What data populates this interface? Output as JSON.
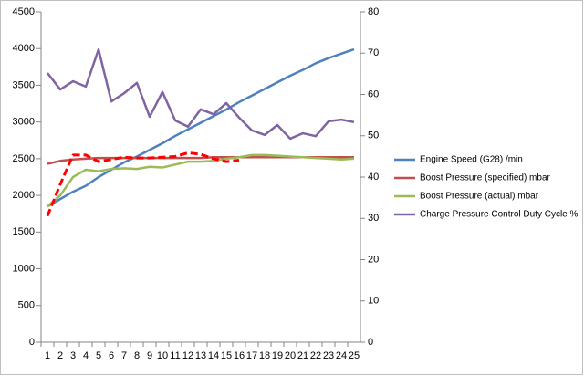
{
  "chart_data": {
    "type": "line",
    "categories": [
      1,
      2,
      3,
      4,
      5,
      6,
      7,
      8,
      9,
      10,
      11,
      12,
      13,
      14,
      15,
      16,
      17,
      18,
      19,
      20,
      21,
      22,
      23,
      24,
      25
    ],
    "ylim": [
      0,
      4500
    ],
    "yticks": [
      0,
      500,
      1000,
      1500,
      2000,
      2500,
      3000,
      3500,
      4000,
      4500
    ],
    "y2lim": [
      0,
      80
    ],
    "y2ticks": [
      0,
      10,
      20,
      30,
      40,
      50,
      60,
      70,
      80
    ],
    "legend": "right",
    "grid": false,
    "series": [
      {
        "name": "Engine Speed (G28)  /min",
        "color": "#4f81bd",
        "values": [
          1850,
          1950,
          2050,
          2130,
          2250,
          2350,
          2450,
          2530,
          2620,
          2710,
          2810,
          2900,
          2990,
          3080,
          3170,
          3270,
          3360,
          3450,
          3540,
          3630,
          3710,
          3800,
          3870,
          3930,
          3990
        ]
      },
      {
        "name": "Boost Pressure (specified)  mbar",
        "color": "#c0504d",
        "values": [
          2430,
          2470,
          2490,
          2500,
          2510,
          2510,
          2510,
          2510,
          2510,
          2510,
          2510,
          2510,
          2510,
          2520,
          2520,
          2520,
          2520,
          2520,
          2520,
          2520,
          2520,
          2520,
          2520,
          2520,
          2520
        ]
      },
      {
        "name": "Boost Pressure (actual)  mbar",
        "color": "#9bbb59",
        "values": [
          1850,
          2000,
          2250,
          2350,
          2330,
          2360,
          2370,
          2360,
          2390,
          2380,
          2420,
          2460,
          2460,
          2470,
          2500,
          2520,
          2550,
          2550,
          2540,
          2530,
          2520,
          2510,
          2500,
          2490,
          2500
        ]
      },
      {
        "name": "Charge Pressure Control Duty Cycle  %",
        "color": "#8064a2",
        "axis": "y2",
        "values": [
          65.2,
          61.2,
          63.2,
          61.9,
          70.9,
          58.3,
          60.3,
          62.8,
          54.6,
          60.6,
          53.7,
          52.2,
          56.4,
          55.2,
          57.9,
          54.4,
          51.3,
          50.2,
          52.6,
          49.3,
          50.6,
          49.9,
          53.5,
          53.9,
          53.3
        ]
      },
      {
        "color": "#ff0000",
        "dashed": true,
        "values": [
          1720,
          2150,
          2550,
          2550,
          2460,
          2490,
          2520,
          2510,
          2510,
          2520,
          2530,
          2580,
          2560,
          2500,
          2460,
          2480,
          null,
          null,
          null,
          null,
          null,
          null,
          null,
          null,
          null
        ]
      }
    ]
  }
}
